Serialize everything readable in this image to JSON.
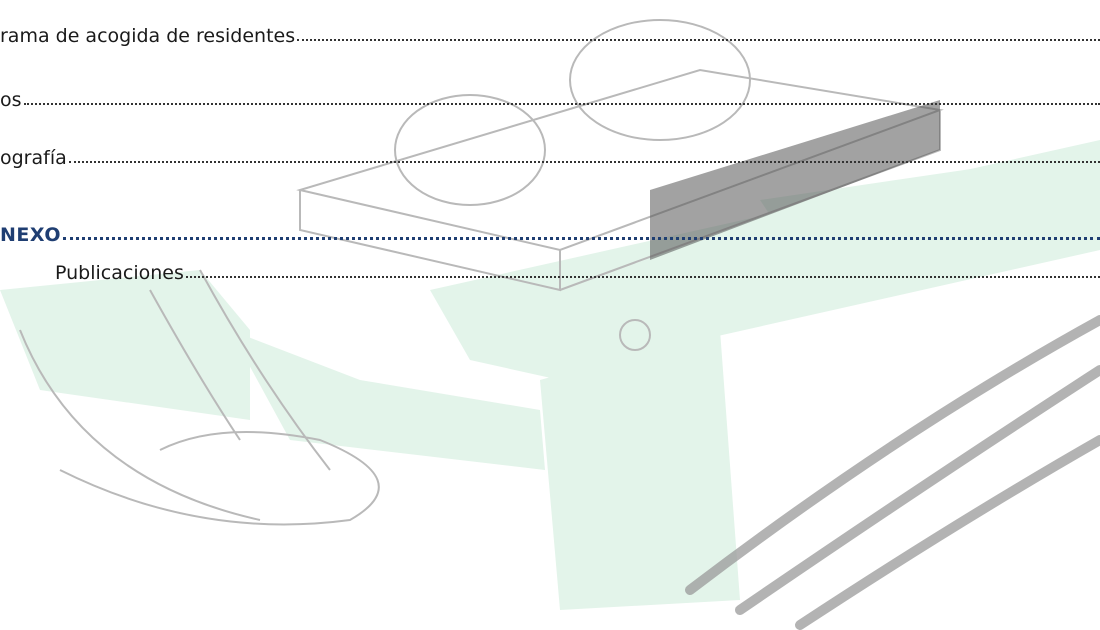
{
  "toc": {
    "entries": [
      {
        "text": "rama de acogida de residentes"
      },
      {
        "text": "os"
      },
      {
        "text": "ografía"
      },
      {
        "text": "NEXO"
      },
      {
        "text": "Publicaciones"
      }
    ]
  }
}
